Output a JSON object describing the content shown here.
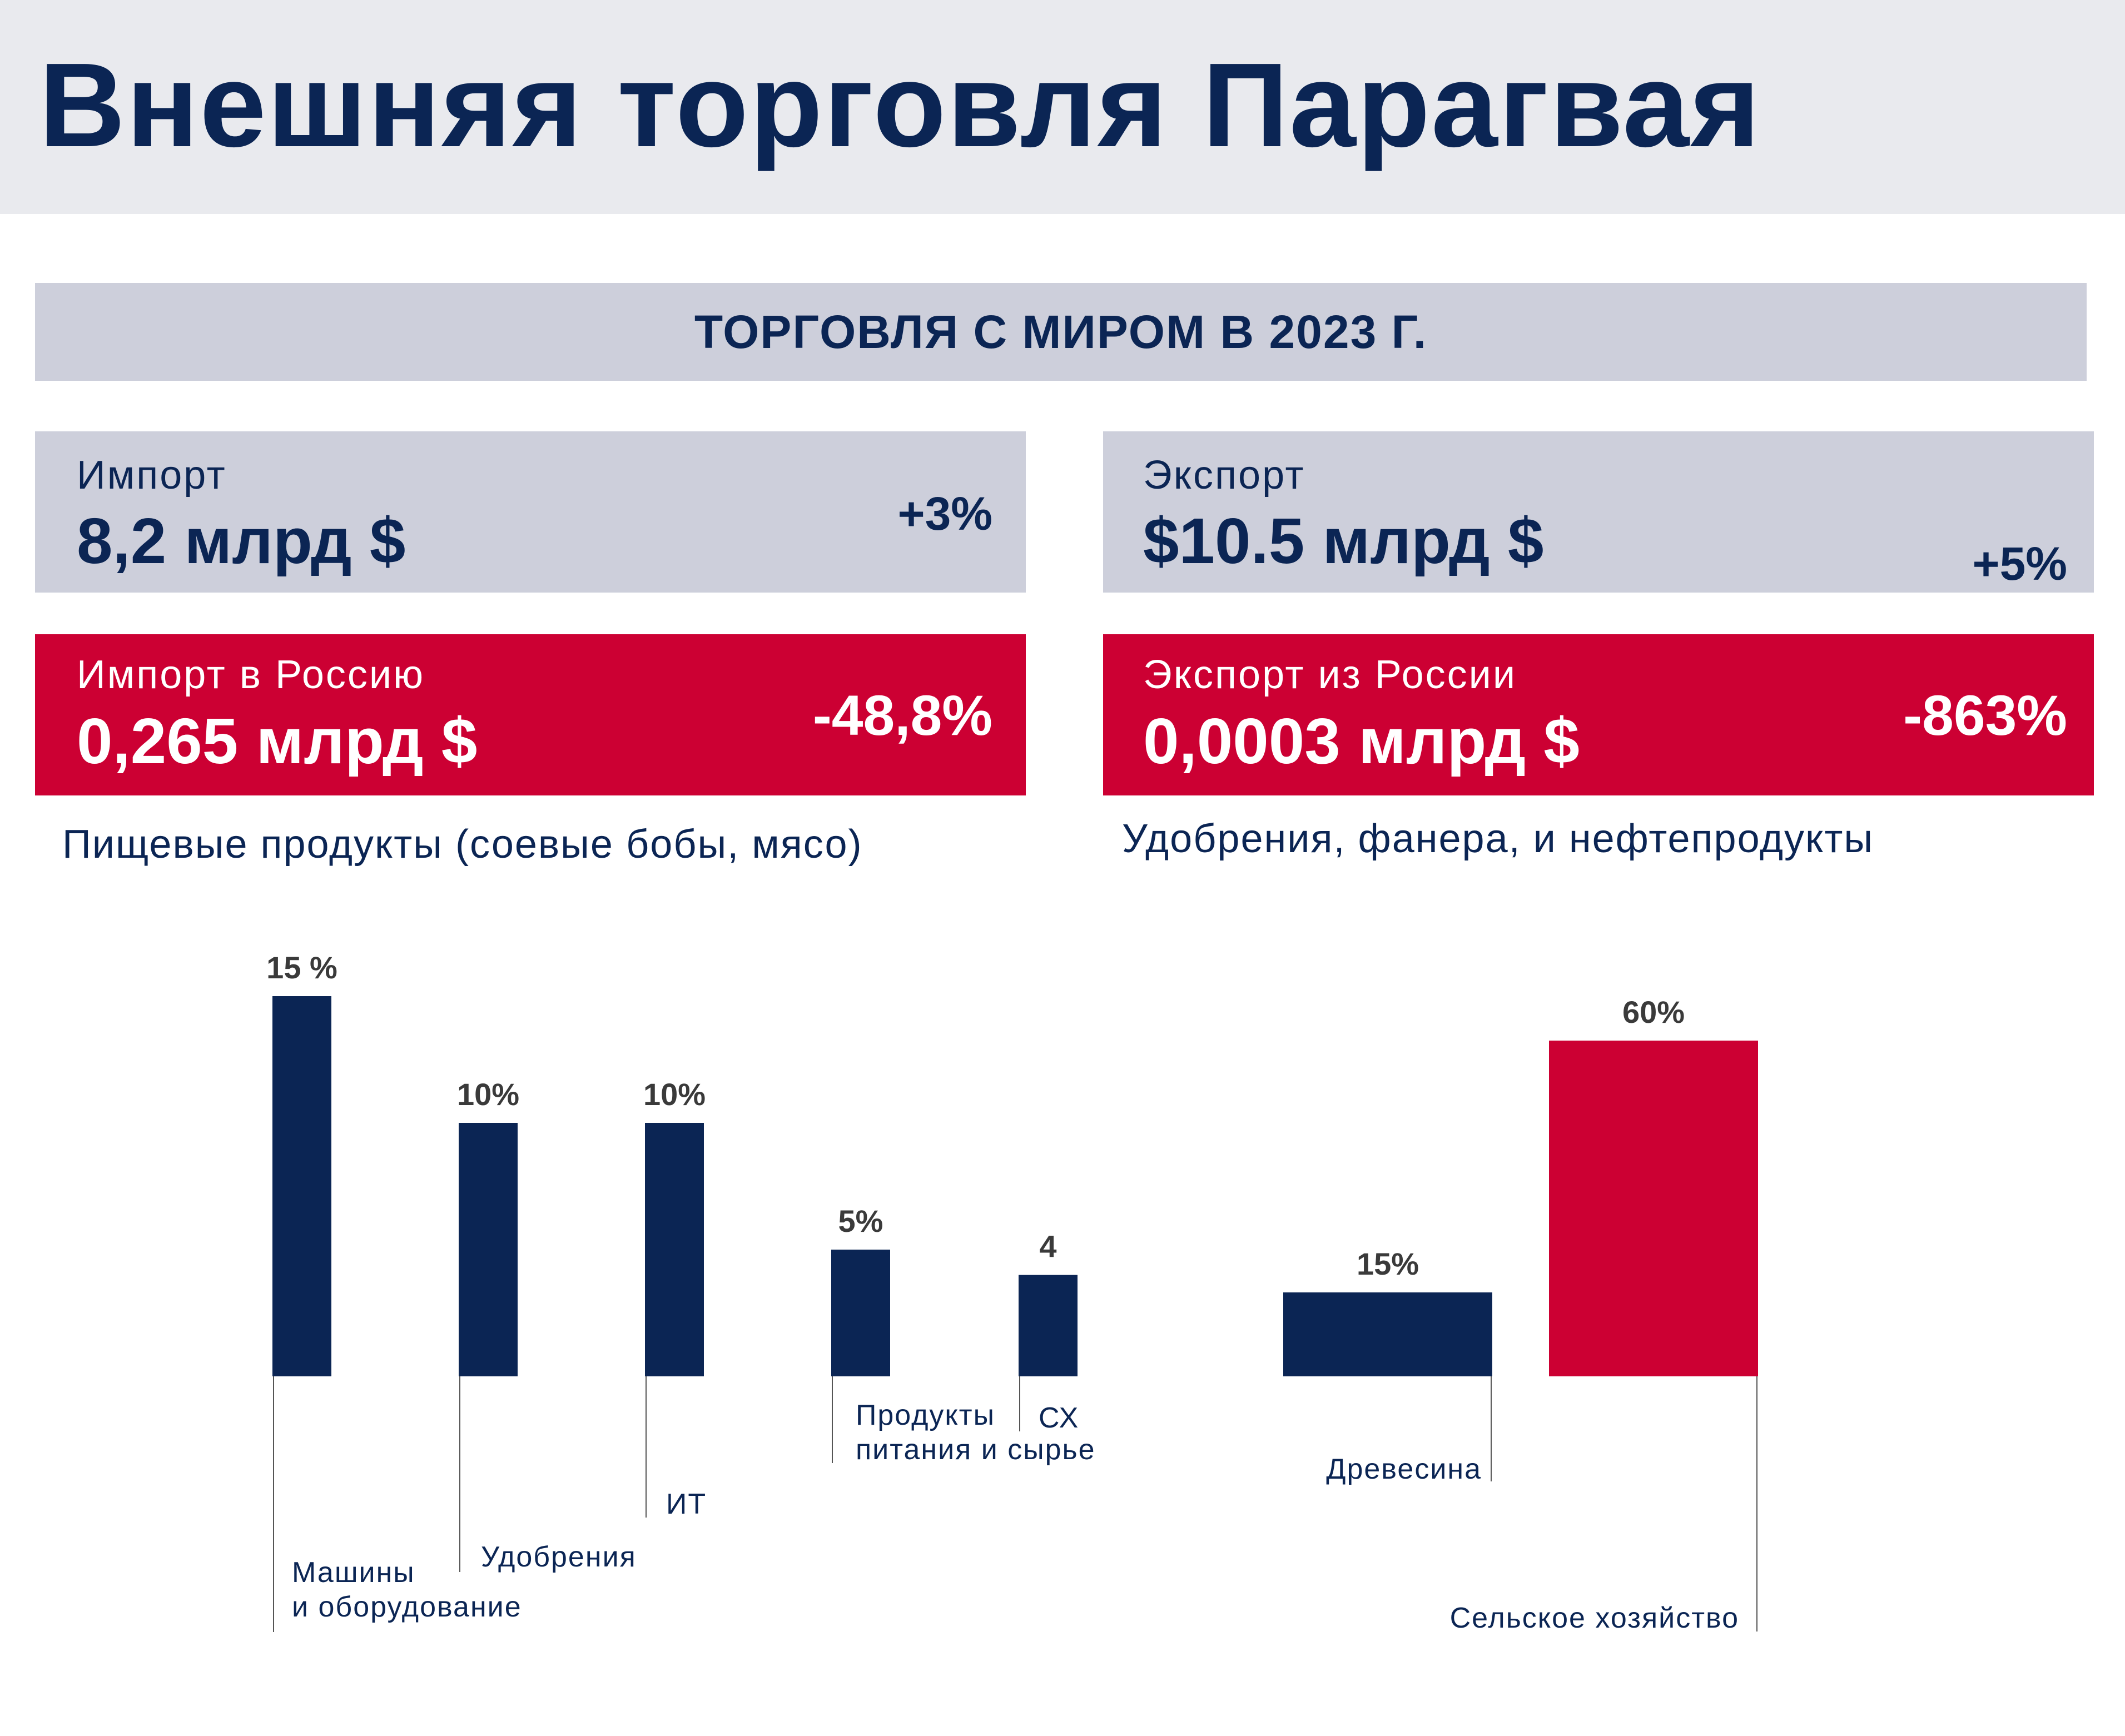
{
  "title": "Внешняя торговля Парагвая",
  "section_title": "ТОРГОВЛЯ С МИРОМ В 2023 Г.",
  "cards": {
    "import": {
      "label": "Импорт",
      "value": "8,2 млрд $",
      "change": "+3%"
    },
    "export": {
      "label": "Экспорт",
      "value": "$10.5 млрд $",
      "change": "+5%"
    },
    "import_russia": {
      "label": "Импорт в Россию",
      "value": "0,265 млрд $",
      "change": "-48,8%"
    },
    "export_russia": {
      "label": "Экспорт из России",
      "value": "0,0003 млрд $",
      "change": "-863%"
    }
  },
  "captions": {
    "left": "Пищевые продукты (соевые бобы, мясо)",
    "right": "Удобрения, фанера, и нефтепродукты"
  },
  "colors": {
    "navy": "#0b2554",
    "red": "#cc0033",
    "header_bg": "#e9eaee",
    "card_bg": "#cdcfdb"
  },
  "chart_data": [
    {
      "type": "bar",
      "categories": [
        "Машины и оборудование",
        "Удобрения",
        "ИТ",
        "Продукты питания и сырье",
        "СХ"
      ],
      "category_lines": [
        [
          "Машины",
          "и оборудование"
        ],
        [
          "Удобрения"
        ],
        [
          "ИТ"
        ],
        [
          "Продукты",
          "питания и сырье"
        ],
        [
          "СХ"
        ]
      ],
      "values": [
        15,
        10,
        10,
        5,
        4
      ],
      "data_labels": [
        "15 %",
        "10%",
        "10%",
        "5%",
        "4"
      ],
      "color": "#0b2554"
    },
    {
      "type": "bar",
      "categories": [
        "Древесина",
        "Сельское хозяйство"
      ],
      "category_lines": [
        [
          "Древесина"
        ],
        [
          "Сельское хозяйство"
        ]
      ],
      "values": [
        15,
        60
      ],
      "data_labels": [
        "15%",
        "60%"
      ],
      "colors": [
        "#0b2554",
        "#cc0033"
      ]
    }
  ]
}
